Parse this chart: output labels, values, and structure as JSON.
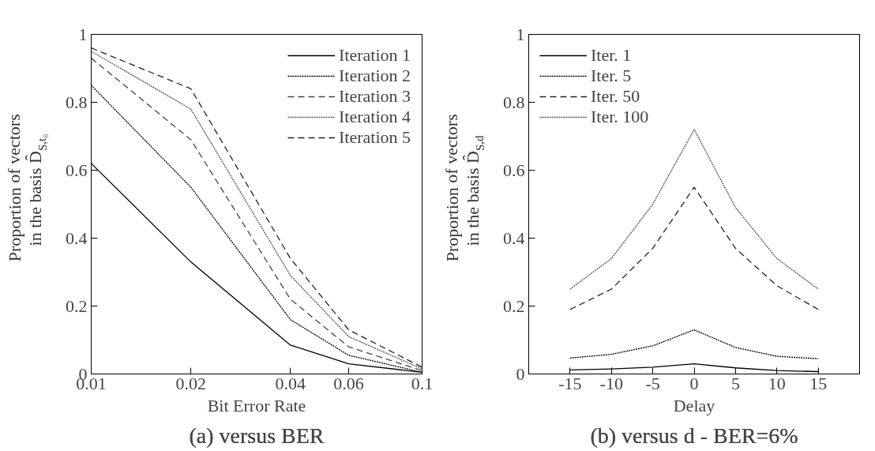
{
  "chart_data": [
    {
      "type": "line",
      "title": "(a) versus BER",
      "xlabel": "Bit Error Rate",
      "ylabel": "Proportion of vectors\nin the basis D̂$_{S,t₀}$",
      "log": "x",
      "x": [
        0.01,
        0.02,
        0.04,
        0.06,
        0.1
      ],
      "series": [
        {
          "name": "Iteration 1",
          "color": "#000000",
          "line_style": "solid",
          "values": [
            0.62,
            0.33,
            0.085,
            0.03,
            0.005
          ]
        },
        {
          "name": "Iteration 2",
          "color": "#000000",
          "line_style": "dotted",
          "values": [
            0.85,
            0.55,
            0.16,
            0.055,
            0.005
          ]
        },
        {
          "name": "Iteration 3",
          "color": "#444444",
          "line_style": "dashed",
          "values": [
            0.93,
            0.69,
            0.22,
            0.08,
            0.01
          ]
        },
        {
          "name": "Iteration 4",
          "color": "#555555",
          "line_style": "dotted",
          "values": [
            0.95,
            0.78,
            0.29,
            0.11,
            0.015
          ]
        },
        {
          "name": "Iteration 5",
          "color": "#222222",
          "line_style": "dashed",
          "values": [
            0.96,
            0.84,
            0.34,
            0.13,
            0.02
          ]
        }
      ],
      "xlim": [
        0.01,
        0.1
      ],
      "xticks": [
        0.01,
        0.02,
        0.04,
        0.06,
        0.1
      ],
      "ylim": [
        0,
        1
      ],
      "yticks": [
        0,
        0.2,
        0.4,
        0.6,
        0.8,
        1
      ],
      "grid": false,
      "legend": "top right",
      "marker": "none"
    },
    {
      "type": "line",
      "title": "(b) versus d - BER=6%",
      "xlabel": "Delay",
      "ylabel": "Proportion of vectors\nin the basis D̂$_{S,d}$",
      "x": [
        -15,
        -10,
        -5,
        0,
        5,
        10,
        15
      ],
      "series": [
        {
          "name": "Iter. 1",
          "color": "#000000",
          "line_style": "solid",
          "values": [
            0.012,
            0.015,
            0.02,
            0.03,
            0.018,
            0.01,
            0.007
          ]
        },
        {
          "name": "Iter. 5",
          "color": "#000000",
          "line_style": "dotted",
          "values": [
            0.047,
            0.058,
            0.083,
            0.13,
            0.078,
            0.052,
            0.045
          ]
        },
        {
          "name": "Iter. 50",
          "color": "#222222",
          "line_style": "dashed",
          "values": [
            0.19,
            0.25,
            0.37,
            0.55,
            0.37,
            0.26,
            0.19
          ]
        },
        {
          "name": "Iter. 100",
          "color": "#555555",
          "line_style": "dotted",
          "values": [
            0.25,
            0.34,
            0.5,
            0.72,
            0.49,
            0.34,
            0.25
          ]
        }
      ],
      "xlim": [
        -20,
        20
      ],
      "xticks": [
        -15,
        -10,
        -5,
        0,
        5,
        10,
        15
      ],
      "ylim": [
        0,
        1
      ],
      "yticks": [
        0,
        0.2,
        0.4,
        0.6,
        0.8,
        1
      ],
      "grid": false,
      "legend": "top left",
      "marker": "none"
    }
  ]
}
